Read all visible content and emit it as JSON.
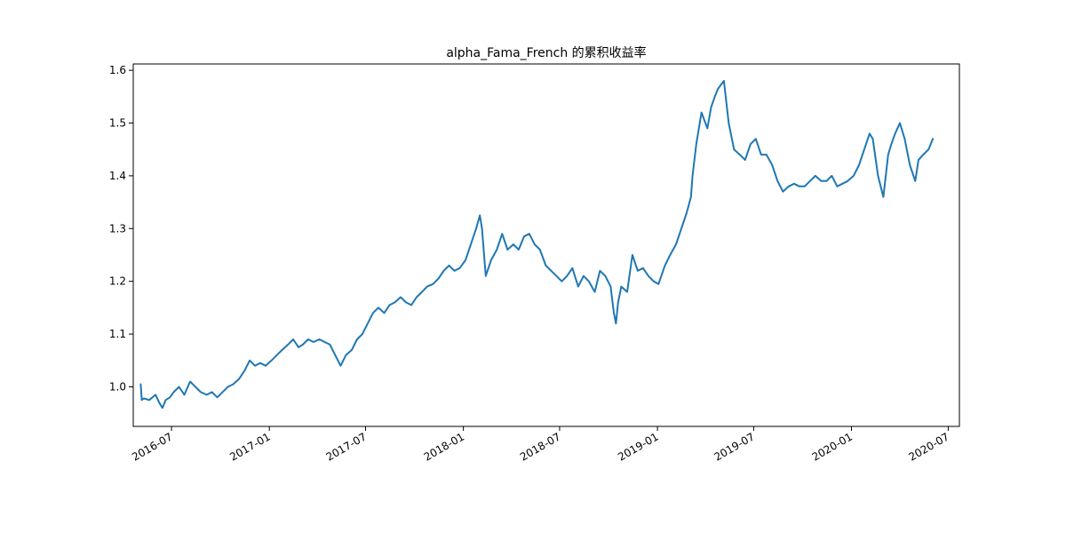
{
  "chart_data": {
    "type": "line",
    "title": "alpha_Fama_French 的累积收益率",
    "xlabel": "",
    "ylabel": "",
    "x_tick_labels": [
      "2016-07",
      "2017-01",
      "2017-07",
      "2018-01",
      "2018-07",
      "2019-01",
      "2019-07",
      "2020-01",
      "2020-07"
    ],
    "x_ticks": [
      "2016-07-01",
      "2017-01-01",
      "2017-07-01",
      "2018-01-01",
      "2018-07-01",
      "2019-01-01",
      "2019-07-01",
      "2020-01-01",
      "2020-07-01"
    ],
    "y_tick_labels": [
      "1.0",
      "1.1",
      "1.2",
      "1.3",
      "1.4",
      "1.5",
      "1.6"
    ],
    "y_ticks": [
      1.0,
      1.1,
      1.2,
      1.3,
      1.4,
      1.5,
      1.6
    ],
    "xlim": [
      "2016-04-20",
      "2020-07-22"
    ],
    "ylim": [
      0.925,
      1.612
    ],
    "grid": false,
    "line_color": "#1f77b4",
    "series": [
      {
        "x": [
          "2016-05-04",
          "2016-05-06",
          "2016-05-10",
          "2016-05-20",
          "2016-06-01",
          "2016-06-08",
          "2016-06-14",
          "2016-06-20",
          "2016-06-28",
          "2016-07-05",
          "2016-07-15",
          "2016-07-25",
          "2016-08-05",
          "2016-08-15",
          "2016-08-25",
          "2016-09-05",
          "2016-09-15",
          "2016-09-25",
          "2016-10-05",
          "2016-10-15",
          "2016-10-25",
          "2016-11-05",
          "2016-11-15",
          "2016-11-25",
          "2016-12-05",
          "2016-12-15",
          "2016-12-25",
          "2017-01-05",
          "2017-01-15",
          "2017-01-25",
          "2017-02-05",
          "2017-02-15",
          "2017-02-25",
          "2017-03-05",
          "2017-03-15",
          "2017-03-25",
          "2017-04-05",
          "2017-04-15",
          "2017-04-25",
          "2017-05-05",
          "2017-05-15",
          "2017-05-25",
          "2017-06-05",
          "2017-06-15",
          "2017-06-25",
          "2017-07-05",
          "2017-07-15",
          "2017-07-25",
          "2017-08-05",
          "2017-08-15",
          "2017-08-25",
          "2017-09-05",
          "2017-09-15",
          "2017-09-25",
          "2017-10-05",
          "2017-10-15",
          "2017-10-25",
          "2017-11-05",
          "2017-11-15",
          "2017-11-25",
          "2017-12-05",
          "2017-12-15",
          "2017-12-25",
          "2018-01-05",
          "2018-01-15",
          "2018-01-25",
          "2018-02-01",
          "2018-02-05",
          "2018-02-12",
          "2018-02-22",
          "2018-03-05",
          "2018-03-15",
          "2018-03-25",
          "2018-04-05",
          "2018-04-15",
          "2018-04-25",
          "2018-05-05",
          "2018-05-15",
          "2018-05-25",
          "2018-06-05",
          "2018-06-15",
          "2018-06-25",
          "2018-07-05",
          "2018-07-15",
          "2018-07-25",
          "2018-08-05",
          "2018-08-15",
          "2018-08-25",
          "2018-09-05",
          "2018-09-15",
          "2018-09-25",
          "2018-10-05",
          "2018-10-11",
          "2018-10-15",
          "2018-10-19",
          "2018-10-25",
          "2018-11-05",
          "2018-11-15",
          "2018-11-25",
          "2018-12-05",
          "2018-12-15",
          "2018-12-25",
          "2019-01-03",
          "2019-01-15",
          "2019-01-25",
          "2019-02-05",
          "2019-02-15",
          "2019-02-25",
          "2019-03-05",
          "2019-03-08",
          "2019-03-15",
          "2019-03-25",
          "2019-04-05",
          "2019-04-12",
          "2019-04-19",
          "2019-04-25",
          "2019-05-06",
          "2019-05-15",
          "2019-05-25",
          "2019-06-05",
          "2019-06-15",
          "2019-06-25",
          "2019-07-05",
          "2019-07-15",
          "2019-07-25",
          "2019-08-05",
          "2019-08-15",
          "2019-08-25",
          "2019-09-05",
          "2019-09-15",
          "2019-09-25",
          "2019-10-05",
          "2019-10-15",
          "2019-10-25",
          "2019-11-05",
          "2019-11-15",
          "2019-11-25",
          "2019-12-05",
          "2019-12-15",
          "2019-12-25",
          "2020-01-05",
          "2020-01-15",
          "2020-01-25",
          "2020-02-04",
          "2020-02-10",
          "2020-02-20",
          "2020-03-01",
          "2020-03-10",
          "2020-03-16",
          "2020-03-23",
          "2020-04-01",
          "2020-04-10",
          "2020-04-20",
          "2020-04-30",
          "2020-05-06",
          "2020-05-15",
          "2020-05-25",
          "2020-06-02"
        ],
        "y": [
          1.005,
          0.975,
          0.978,
          0.975,
          0.985,
          0.97,
          0.96,
          0.975,
          0.98,
          0.99,
          1.0,
          0.985,
          1.01,
          1.0,
          0.99,
          0.985,
          0.99,
          0.98,
          0.99,
          1.0,
          1.005,
          1.015,
          1.03,
          1.05,
          1.04,
          1.045,
          1.04,
          1.05,
          1.06,
          1.07,
          1.08,
          1.09,
          1.075,
          1.08,
          1.09,
          1.085,
          1.09,
          1.085,
          1.08,
          1.06,
          1.04,
          1.06,
          1.07,
          1.09,
          1.1,
          1.12,
          1.14,
          1.15,
          1.14,
          1.155,
          1.16,
          1.17,
          1.16,
          1.155,
          1.17,
          1.18,
          1.19,
          1.195,
          1.205,
          1.22,
          1.23,
          1.22,
          1.225,
          1.24,
          1.27,
          1.3,
          1.325,
          1.3,
          1.21,
          1.24,
          1.26,
          1.29,
          1.26,
          1.27,
          1.26,
          1.285,
          1.29,
          1.27,
          1.26,
          1.23,
          1.22,
          1.21,
          1.2,
          1.21,
          1.225,
          1.19,
          1.21,
          1.2,
          1.18,
          1.22,
          1.21,
          1.19,
          1.14,
          1.12,
          1.16,
          1.19,
          1.18,
          1.25,
          1.22,
          1.225,
          1.21,
          1.2,
          1.195,
          1.23,
          1.25,
          1.27,
          1.3,
          1.33,
          1.36,
          1.4,
          1.46,
          1.52,
          1.49,
          1.53,
          1.55,
          1.565,
          1.58,
          1.5,
          1.45,
          1.44,
          1.43,
          1.46,
          1.47,
          1.44,
          1.44,
          1.42,
          1.39,
          1.37,
          1.38,
          1.385,
          1.38,
          1.38,
          1.39,
          1.4,
          1.39,
          1.39,
          1.4,
          1.38,
          1.385,
          1.39,
          1.4,
          1.42,
          1.45,
          1.48,
          1.47,
          1.4,
          1.36,
          1.44,
          1.46,
          1.48,
          1.5,
          1.47,
          1.42,
          1.39,
          1.43,
          1.44,
          1.45,
          1.47
        ]
      }
    ]
  }
}
